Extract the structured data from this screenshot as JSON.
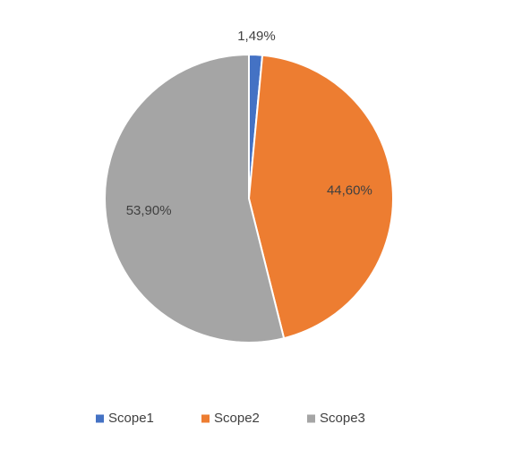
{
  "chart_data": {
    "type": "pie",
    "categories": [
      "Scope1",
      "Scope2",
      "Scope3"
    ],
    "values": [
      1.49,
      44.6,
      53.9
    ],
    "value_labels": [
      "1,49%",
      "44,60%",
      "53,90%"
    ],
    "colors": [
      "#4472c4",
      "#ed7d31",
      "#a5a5a5"
    ],
    "legend": "bottom"
  }
}
